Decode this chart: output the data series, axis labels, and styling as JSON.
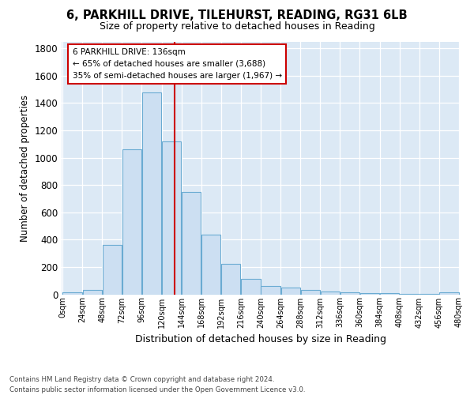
{
  "title1": "6, PARKHILL DRIVE, TILEHURST, READING, RG31 6LB",
  "title2": "Size of property relative to detached houses in Reading",
  "xlabel": "Distribution of detached houses by size in Reading",
  "ylabel": "Number of detached properties",
  "bar_color": "#ccdff2",
  "bar_edgecolor": "#6aabd2",
  "fig_facecolor": "#ffffff",
  "ax_facecolor": "#dce9f5",
  "grid_color": "#ffffff",
  "bin_edges": [
    0,
    24,
    48,
    72,
    96,
    120,
    144,
    168,
    192,
    216,
    240,
    264,
    288,
    312,
    336,
    360,
    384,
    408,
    432,
    456,
    480
  ],
  "bar_heights": [
    15,
    30,
    360,
    1060,
    1480,
    1120,
    750,
    435,
    225,
    115,
    60,
    50,
    30,
    20,
    15,
    10,
    8,
    5,
    5,
    15
  ],
  "property_size": 136,
  "vline_color": "#cc0000",
  "annotation_line1": "6 PARKHILL DRIVE: 136sqm",
  "annotation_line2": "← 65% of detached houses are smaller (3,688)",
  "annotation_line3": "35% of semi-detached houses are larger (1,967) →",
  "annotation_box_facecolor": "#ffffff",
  "annotation_box_edgecolor": "#cc0000",
  "footer_text": "Contains HM Land Registry data © Crown copyright and database right 2024.\nContains public sector information licensed under the Open Government Licence v3.0.",
  "ylim": [
    0,
    1850
  ],
  "tick_labels": [
    "0sqm",
    "24sqm",
    "48sqm",
    "72sqm",
    "96sqm",
    "120sqm",
    "144sqm",
    "168sqm",
    "192sqm",
    "216sqm",
    "240sqm",
    "264sqm",
    "288sqm",
    "312sqm",
    "336sqm",
    "360sqm",
    "384sqm",
    "408sqm",
    "432sqm",
    "456sqm",
    "480sqm"
  ]
}
